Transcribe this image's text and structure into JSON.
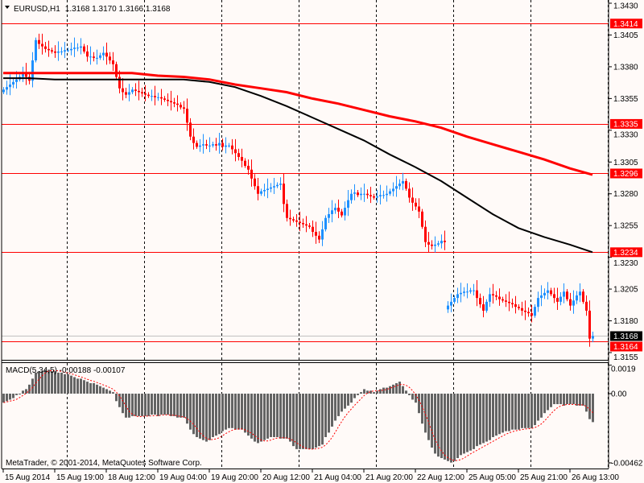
{
  "header": {
    "symbol": "EURUSD,H1",
    "ohlc": "1.3168 1.3170 1.3166 1.3168",
    "menu_icon": "triangle-down-icon"
  },
  "indicator": {
    "label": "MACD(5,34,5) -0.00188 -0.00107"
  },
  "copyright": "MetaTrader, © 2001-2014, MetaQuotes Software Corp.",
  "colors": {
    "background": "#fffaf8",
    "bull": "#1e90ff",
    "bear": "#ff0000",
    "ma_red": "#ff0000",
    "ma_black": "#000000",
    "hline": "#ff0000",
    "bid_line": "#c0c0c0",
    "histogram": "#646464",
    "signal": "#ff0000"
  },
  "chart_data": [
    {
      "type": "candlestick",
      "symbol": "EURUSD",
      "timeframe": "H1",
      "ylim": [
        1.315,
        1.3432
      ],
      "y_ticks": [
        "1.3430",
        "1.3405",
        "1.3380",
        "1.3355",
        "1.3330",
        "1.3305",
        "1.3280",
        "1.3255",
        "1.3230",
        "1.3205",
        "1.3180",
        "1.3155"
      ],
      "x_ticks": [
        "15 Aug 2014",
        "15 Aug 19:00",
        "18 Aug 12:00",
        "19 Aug 04:00",
        "19 Aug 20:00",
        "20 Aug 12:00",
        "21 Aug 04:00",
        "21 Aug 20:00",
        "22 Aug 12:00",
        "25 Aug 05:00",
        "25 Aug 21:00",
        "26 Aug 13:00"
      ],
      "grid": "vertical dashed",
      "close": [
        1.3362,
        1.3364,
        1.3366,
        1.3368,
        1.337,
        1.3372,
        1.3375,
        1.3372,
        1.3369,
        1.3385,
        1.3401,
        1.3398,
        1.3396,
        1.3394,
        1.3393,
        1.3392,
        1.3391,
        1.3392,
        1.3392,
        1.3393,
        1.3393,
        1.3394,
        1.3395,
        1.3395,
        1.3396,
        1.3392,
        1.3388,
        1.3388,
        1.3387,
        1.3387,
        1.3389,
        1.3391,
        1.3388,
        1.3385,
        1.3382,
        1.3372,
        1.3363,
        1.336,
        1.3358,
        1.336,
        1.3362,
        1.3361,
        1.336,
        1.3359,
        1.3358,
        1.3357,
        1.3357,
        1.3356,
        1.3356,
        1.3355,
        1.3354,
        1.3353,
        1.3352,
        1.3351,
        1.335,
        1.3348,
        1.3347,
        1.3336,
        1.3325,
        1.332,
        1.3317,
        1.3318,
        1.3319,
        1.3318,
        1.3318,
        1.3319,
        1.3318,
        1.332,
        1.3317,
        1.3318,
        1.3318,
        1.3315,
        1.3312,
        1.3309,
        1.3306,
        1.3302,
        1.3299,
        1.3292,
        1.3286,
        1.328,
        1.3282,
        1.3283,
        1.3284,
        1.3285,
        1.3286,
        1.3287,
        1.3288,
        1.3272,
        1.3261,
        1.326,
        1.3259,
        1.3258,
        1.3257,
        1.3256,
        1.3255,
        1.3254,
        1.325,
        1.3247,
        1.3244,
        1.3252,
        1.3261,
        1.3264,
        1.3267,
        1.3269,
        1.3266,
        1.3263,
        1.3269,
        1.3275,
        1.328,
        1.3281,
        1.3279,
        1.328,
        1.328,
        1.3279,
        1.3278,
        1.3277,
        1.3278,
        1.3279,
        1.3279,
        1.328,
        1.3282,
        1.3284,
        1.3286,
        1.3288,
        1.329,
        1.3284,
        1.3277,
        1.3273,
        1.327,
        1.3266,
        1.3254,
        1.3242,
        1.324,
        1.3239,
        1.324,
        1.3241,
        1.3243,
        1.3242,
        1.3192,
        1.3195,
        1.3198,
        1.3201,
        1.3202,
        1.3203,
        1.3203,
        1.3204,
        1.3204,
        1.3198,
        1.3193,
        1.3188,
        1.3195,
        1.3201,
        1.32,
        1.3199,
        1.3197,
        1.3196,
        1.3195,
        1.3194,
        1.3193,
        1.3191,
        1.319,
        1.3188,
        1.3187,
        1.3186,
        1.3184,
        1.3191,
        1.3198,
        1.32,
        1.3202,
        1.3204,
        1.3201,
        1.3198,
        1.3195,
        1.3199,
        1.3203,
        1.3197,
        1.3192,
        1.3196,
        1.32,
        1.3203,
        1.3195,
        1.3188,
        1.3166,
        1.3168
      ],
      "red_ma": [
        1.3375,
        1.3375,
        1.3375,
        1.3375,
        1.3375,
        1.3375,
        1.3373,
        1.3372,
        1.337,
        1.3366,
        1.3363,
        1.336,
        1.3355,
        1.3351,
        1.3346,
        1.3341,
        1.3337,
        1.3332,
        1.3325,
        1.3319,
        1.3313,
        1.3307,
        1.33,
        1.3295
      ],
      "black_ma": [
        1.3371,
        1.3371,
        1.337,
        1.337,
        1.337,
        1.337,
        1.337,
        1.337,
        1.3368,
        1.3364,
        1.3357,
        1.3349,
        1.334,
        1.3331,
        1.3322,
        1.3311,
        1.3301,
        1.329,
        1.3277,
        1.3264,
        1.3253,
        1.3246,
        1.324,
        1.3234
      ],
      "horizontal_lines": [
        {
          "price": 1.3414,
          "label": "1.3414"
        },
        {
          "price": 1.3335,
          "label": "1.3335"
        },
        {
          "price": 1.3296,
          "label": "1.3296"
        },
        {
          "price": 1.3234,
          "label": "1.3234"
        },
        {
          "price": 1.3164,
          "label": "1.3164"
        }
      ],
      "bid": {
        "price": 1.3168,
        "label": "1.3168"
      }
    },
    {
      "type": "bar",
      "name": "MACD(5,34,5)",
      "ylim": [
        -0.00462,
        0.0019
      ],
      "y_ticks": [
        "0.0019",
        "0.00",
        "-0.00462"
      ],
      "values": [
        -0.0006,
        -0.0005,
        -0.0004,
        -0.0003,
        -0.0001,
        0,
        0.0002,
        0.0003,
        0.0006,
        0.001,
        0.0014,
        0.0015,
        0.0015,
        0.0016,
        0.0016,
        0.0015,
        0.0015,
        0.0014,
        0.0014,
        0.0013,
        0.0013,
        0.0012,
        0.0011,
        0.001,
        0.001,
        0.0009,
        0.0008,
        0.0007,
        0.0007,
        0.0006,
        0.0005,
        0.0004,
        0.0003,
        0.0002,
        0.0001,
        -0.0005,
        -0.0009,
        -0.0013,
        -0.0016,
        -0.0016,
        -0.0015,
        -0.0015,
        -0.0015,
        -0.0015,
        -0.0015,
        -0.0015,
        -0.0014,
        -0.0014,
        -0.0015,
        -0.0014,
        -0.0014,
        -0.0014,
        -0.0015,
        -0.0015,
        -0.0016,
        -0.0016,
        -0.0016,
        -0.002,
        -0.0024,
        -0.0027,
        -0.0029,
        -0.003,
        -0.0031,
        -0.0032,
        -0.0031,
        -0.0029,
        -0.0028,
        -0.0027,
        -0.0025,
        -0.0024,
        -0.0023,
        -0.0023,
        -0.0024,
        -0.0024,
        -0.0024,
        -0.0026,
        -0.0028,
        -0.003,
        -0.0032,
        -0.0033,
        -0.0032,
        -0.0031,
        -0.003,
        -0.0029,
        -0.0029,
        -0.0029,
        -0.003,
        -0.003,
        -0.003,
        -0.0032,
        -0.0035,
        -0.0037,
        -0.0037,
        -0.0037,
        -0.0037,
        -0.0037,
        -0.0037,
        -0.0036,
        -0.0035,
        -0.0034,
        -0.0029,
        -0.0026,
        -0.0022,
        -0.0018,
        -0.0015,
        -0.0012,
        -0.001,
        -0.0008,
        -0.0006,
        -0.0003,
        -0.0001,
        0.0001,
        0.0003,
        0.0002,
        0.0002,
        0.0001,
        0.0002,
        0.0003,
        0.0004,
        0.0004,
        0.0005,
        0.0006,
        0.0007,
        0.0008,
        0.0005,
        0.0002,
        -0.0001,
        -0.0004,
        -0.0006,
        -0.0013,
        -0.002,
        -0.0026,
        -0.0031,
        -0.0036,
        -0.004,
        -0.0042,
        -0.0043,
        -0.0044,
        -0.0045,
        -0.0046,
        -0.0045,
        -0.0043,
        -0.0041,
        -0.004,
        -0.0039,
        -0.0038,
        -0.0037,
        -0.0035,
        -0.0034,
        -0.0033,
        -0.0032,
        -0.0031,
        -0.0029,
        -0.0028,
        -0.0027,
        -0.0026,
        -0.0025,
        -0.0025,
        -0.0024,
        -0.0024,
        -0.0024,
        -0.0023,
        -0.0023,
        -0.0023,
        -0.0023,
        -0.0021,
        -0.0018,
        -0.0016,
        -0.0013,
        -0.0011,
        -0.0009,
        -0.0007,
        -0.0007,
        -0.0007,
        -0.0008,
        -0.0007,
        -0.0007,
        -0.0007,
        -0.0008,
        -0.0008,
        -0.0008,
        -0.0012,
        -0.0017,
        -0.0019
      ],
      "signal": {
        "type": "SMA",
        "period": 5,
        "last": -0.00107
      },
      "last_macd": -0.00188
    }
  ]
}
